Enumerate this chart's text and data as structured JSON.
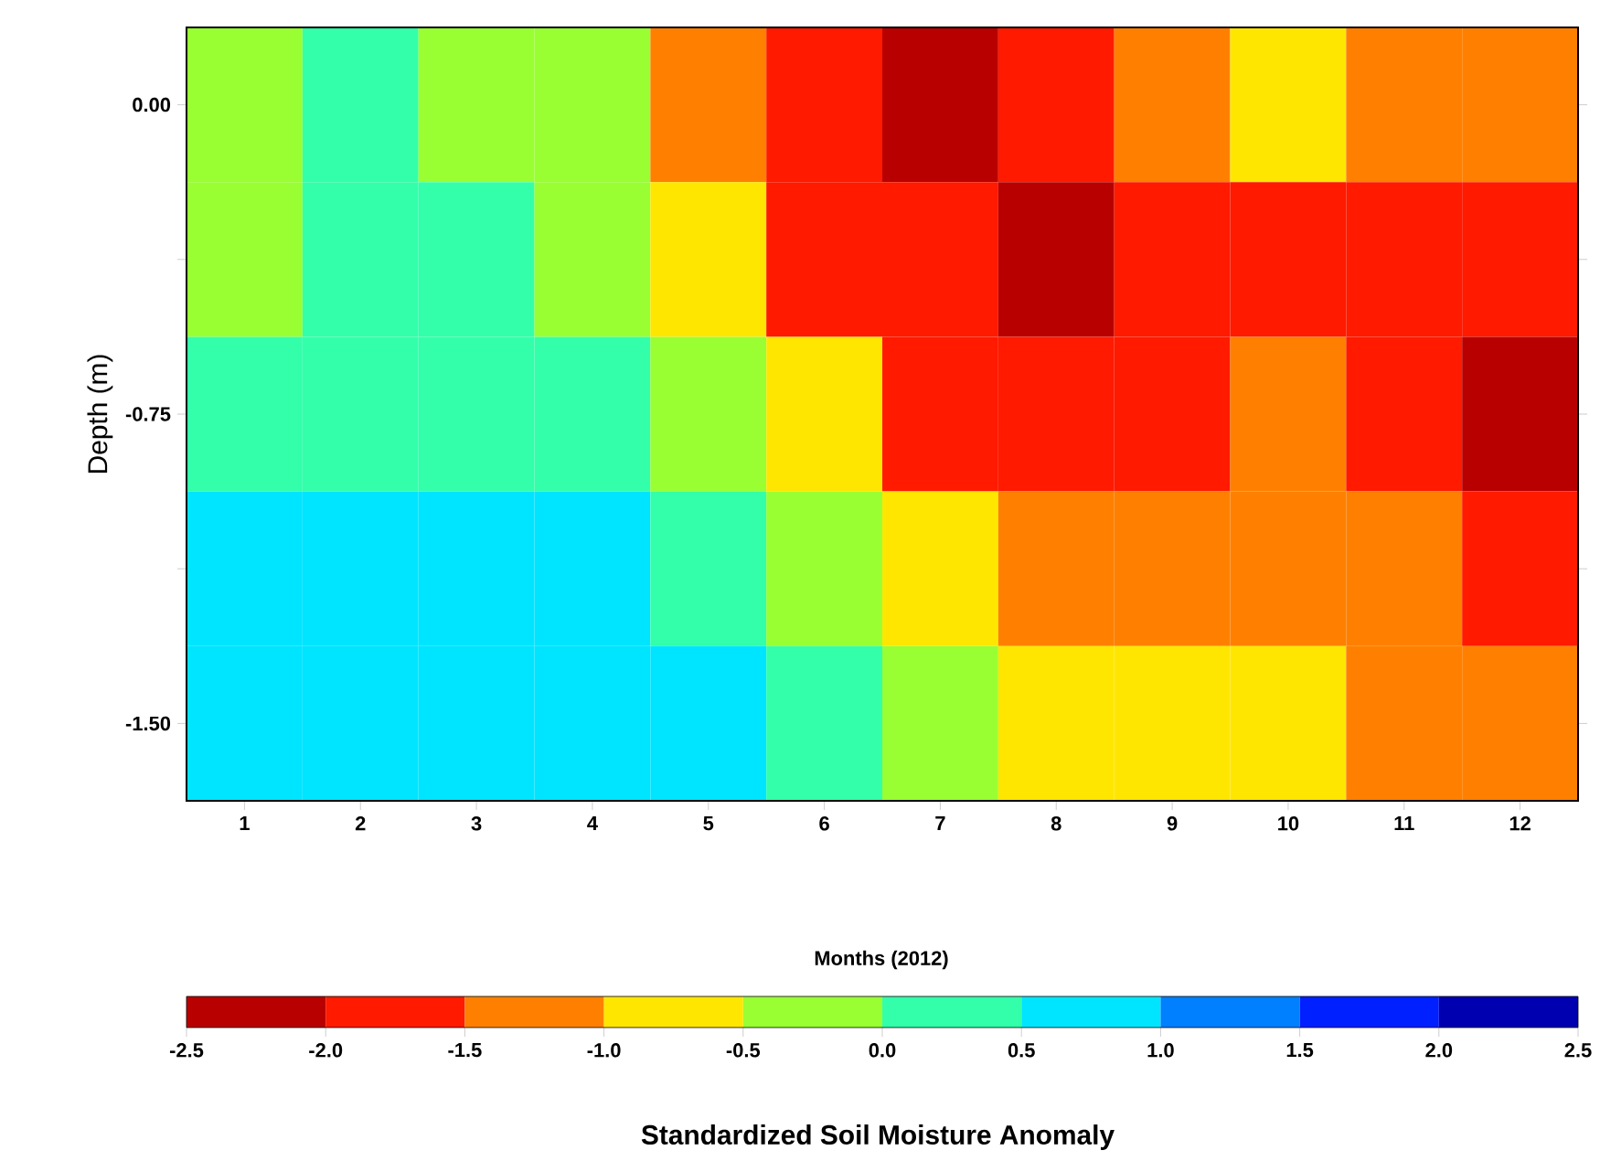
{
  "chart_data": {
    "type": "heatmap",
    "ylabel": "Depth (m)",
    "clabel": "Standardized Soil Moisture Anomaly",
    "annotations": [
      "Months (2012)"
    ],
    "categories": [
      "1",
      "2",
      "3",
      "4",
      "5",
      "6",
      "7",
      "8",
      "9",
      "10",
      "11",
      "12"
    ],
    "y_categories": [
      "0.00",
      null,
      "-0.75",
      null,
      "-1.50"
    ],
    "cells": [
      [
        -0.25,
        0.25,
        -0.25,
        -0.25,
        -1.25,
        -1.75,
        -2.25,
        -1.75,
        -1.25,
        -0.75,
        -1.25,
        -1.25
      ],
      [
        -0.25,
        0.25,
        0.25,
        -0.25,
        -0.75,
        -1.75,
        -1.75,
        -2.25,
        -1.75,
        -1.75,
        -1.75,
        -1.75
      ],
      [
        0.25,
        0.25,
        0.25,
        0.25,
        -0.25,
        -0.75,
        -1.75,
        -1.75,
        -1.75,
        -1.25,
        -1.75,
        -2.25
      ],
      [
        0.75,
        0.75,
        0.75,
        0.75,
        0.25,
        -0.25,
        -0.75,
        -1.25,
        -1.25,
        -1.25,
        -1.25,
        -1.75
      ],
      [
        0.75,
        0.75,
        0.75,
        0.75,
        0.75,
        0.25,
        -0.25,
        -0.75,
        -0.75,
        -0.75,
        -1.25,
        -1.25
      ]
    ],
    "clim": [
      -2.5,
      2.5
    ],
    "cticks": [
      {
        "value": -2.5,
        "label": "-2.5"
      },
      {
        "value": -2.0,
        "label": "-2.0"
      },
      {
        "value": -1.5,
        "label": "-1.5"
      },
      {
        "value": -1.0,
        "label": "-1.0"
      },
      {
        "value": -0.5,
        "label": "-0.5"
      },
      {
        "value": 0.0,
        "label": "0.0"
      },
      {
        "value": 0.5,
        "label": "0.5"
      },
      {
        "value": 1.0,
        "label": "1.0"
      },
      {
        "value": 1.5,
        "label": "1.5"
      },
      {
        "value": 2.0,
        "label": "2.0"
      },
      {
        "value": 2.5,
        "label": "2.5"
      }
    ],
    "colors": [
      "#b80000",
      "#ff1a00",
      "#ff8000",
      "#ffe600",
      "#99ff33",
      "#33ffaa",
      "#00e5ff",
      "#0080ff",
      "#0020ff",
      "#0000b0"
    ]
  }
}
